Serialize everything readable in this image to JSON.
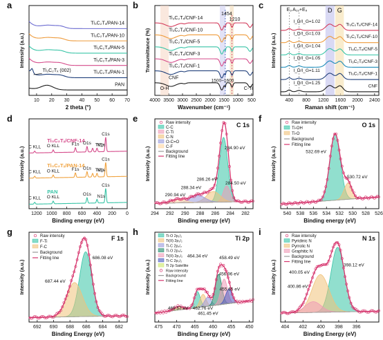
{
  "figure": {
    "panels": [
      {
        "id": "a",
        "title": "",
        "xlabel": "2 theta (°)",
        "ylabel": "Intensity (a.u.)"
      },
      {
        "id": "b",
        "title": "",
        "xlabel": "Wavenumber (cm⁻¹)",
        "ylabel": "Transmittance (%)"
      },
      {
        "id": "c",
        "title": "",
        "xlabel": "Raman shift (cm⁻¹)",
        "ylabel": "Intensity (a.u.)"
      },
      {
        "id": "d",
        "title": "",
        "xlabel": "Binding energy (eV)",
        "ylabel": "Intensity (a.u.)"
      },
      {
        "id": "e",
        "title": "C 1s",
        "xlabel": "Binding energy (eV)",
        "ylabel": "Intensity (a.u.)"
      },
      {
        "id": "f",
        "title": "O 1s",
        "xlabel": "Binding energy (eV)",
        "ylabel": "Intensity (a.u.)"
      },
      {
        "id": "g",
        "title": "F 1s",
        "xlabel": "Binding Energy (eV)",
        "ylabel": "Intensity (a.u.)"
      },
      {
        "id": "h",
        "title": "Ti 2p",
        "xlabel": "Binding Energy (eV)",
        "ylabel": "Intensity (a.u.)"
      },
      {
        "id": "i",
        "title": "N 1s",
        "xlabel": "Binding Energy (eV)",
        "ylabel": "Intensity (a.u.)"
      }
    ]
  },
  "chart_data": [
    {
      "panel": "a",
      "type": "line",
      "xlim": [
        5,
        70
      ],
      "xticks": [
        10,
        20,
        30,
        40,
        50,
        60,
        70
      ],
      "annotations": [
        {
          "text": "Ti₃C₂Tₓ (002)"
        }
      ],
      "series": [
        {
          "name": "Ti₃C₂Tₓ/PAN-14",
          "color": "#6a6ad0",
          "offset": 5
        },
        {
          "name": "Ti₃C₂Tₓ/PAN-10",
          "color": "#ee9a3a",
          "offset": 4
        },
        {
          "name": "Ti₃C₂Tₓ/PAN-5",
          "color": "#37c4a6",
          "offset": 3
        },
        {
          "name": "Ti₃C₂Tₓ/PAN-3",
          "color": "#d54a8a",
          "offset": 2
        },
        {
          "name": "Ti₃C₂Tₓ/PAN-1",
          "color": "#1f3f7a",
          "offset": 1
        },
        {
          "name": "PAN",
          "color": "#1a1a1a",
          "offset": 0
        }
      ]
    },
    {
      "panel": "b",
      "type": "line",
      "xlim": [
        4000,
        450
      ],
      "xaxis": "reversed",
      "xticks": [
        4000,
        3500,
        3000,
        2500,
        2000,
        1500,
        1000,
        500
      ],
      "annotations": [
        {
          "text": "1454"
        },
        {
          "text": "1210"
        },
        {
          "text": "1500~1600"
        },
        {
          "text": "O-H"
        },
        {
          "text": "C-Ti"
        }
      ],
      "series": [
        {
          "name": "Ti₃C₂Tₓ/CNF-14",
          "color": "#d33a5a",
          "offset": 5
        },
        {
          "name": "Ti₃C₂Tₓ/CNF-10",
          "color": "#ee9a3a",
          "offset": 4
        },
        {
          "name": "Ti₃C₂Tₓ/CNF-5",
          "color": "#37c4a6",
          "offset": 3
        },
        {
          "name": "Ti₃C₂Tₓ/CNF-3",
          "color": "#d54a8a",
          "offset": 2
        },
        {
          "name": "Ti₃C₂Tₓ/CNF-1",
          "color": "#1f3f7a",
          "offset": 1
        },
        {
          "name": "CNF",
          "color": "#1a1a1a",
          "offset": 0
        }
      ]
    },
    {
      "panel": "c",
      "type": "line",
      "xlim": [
        200,
        2500
      ],
      "xticks": [
        400,
        800,
        1200,
        1600,
        2000,
        2400
      ],
      "bands": [
        "E₉",
        "A₁₉+E₉",
        "D",
        "G"
      ],
      "series": [
        {
          "name": "Ti₃C₂Tₓ/CNF-14",
          "color": "#d33a5a",
          "ratio": "I_D/I_G=1.02"
        },
        {
          "name": "Ti₃C₂Tₓ/CNF-10",
          "color": "#ee9a3a",
          "ratio": "I_D/I_G=1.03"
        },
        {
          "name": "Ti₃C₂Tₓ/CNF-5",
          "color": "#37c4a6",
          "ratio": "I_D/I_G=1.04"
        },
        {
          "name": "Ti₃C₂Tₓ/CNF-3",
          "color": "#1a8ab8",
          "ratio": "I_D/I_G=1.05"
        },
        {
          "name": "Ti₃C₂Tₓ/CNF-1",
          "color": "#1f3f7a",
          "ratio": "I_D/I_G=1.11"
        },
        {
          "name": "CNF",
          "color": "#1a1a1a",
          "ratio": "I_D/I_G=1.25"
        }
      ]
    },
    {
      "panel": "d",
      "type": "line",
      "xlim": [
        1300,
        0
      ],
      "xaxis": "reversed",
      "xticks": [
        1200,
        1000,
        800,
        600,
        400,
        200,
        0
      ],
      "series": [
        {
          "name": "Ti₃C₂Tₓ/CNF-14",
          "color": "#d54a8a",
          "peaks": [
            {
              "label": "C KLL"
            },
            {
              "label": "O KLL"
            },
            {
              "label": "F1s"
            },
            {
              "label": "Ti2p"
            },
            {
              "label": "O1s"
            },
            {
              "label": "N1s"
            },
            {
              "label": "C1s"
            }
          ]
        },
        {
          "name": "Ti₃C₂Tₓ/PAN-14",
          "color": "#f0a23e",
          "peaks": [
            {
              "label": "C KLL"
            },
            {
              "label": "O KLL"
            },
            {
              "label": "F1s"
            },
            {
              "label": "Ti2p"
            },
            {
              "label": "O1s"
            },
            {
              "label": "N1s"
            },
            {
              "label": "C1s"
            }
          ]
        },
        {
          "name": "PAN",
          "color": "#37c4a6",
          "peaks": [
            {
              "label": "C KLL"
            },
            {
              "label": "O KLL"
            },
            {
              "label": "O1s"
            },
            {
              "label": "N1s"
            },
            {
              "label": "C1s"
            }
          ]
        }
      ]
    },
    {
      "panel": "e",
      "type": "line",
      "xlim": [
        294,
        281
      ],
      "xaxis": "reversed",
      "xticks": [
        294,
        292,
        290,
        288,
        286,
        284,
        282
      ],
      "legend": [
        "Raw intensity",
        "C-C",
        "C-Ti",
        "C-N",
        "O-C=O",
        "C-F",
        "Background",
        "Fitting line"
      ],
      "components": [
        {
          "name": "C-C",
          "center": 284.9,
          "label": "284.90 eV",
          "color": "#37c4a6"
        },
        {
          "name": "C-Ti",
          "center": 284.5,
          "label": "284.50 eV",
          "color": "#ef9ab6"
        },
        {
          "name": "C-N",
          "center": 286.26,
          "label": "286.26 eV",
          "color": "#f0c27a"
        },
        {
          "name": "O-C=O",
          "center": 288.34,
          "label": "288.34 eV",
          "color": "#9a9adc"
        },
        {
          "name": "C-F",
          "center": 290.94,
          "label": "290.94 eV",
          "color": "#ffd6a0"
        }
      ]
    },
    {
      "panel": "f",
      "type": "line",
      "xlim": [
        541,
        526
      ],
      "xaxis": "reversed",
      "xticks": [
        540,
        538,
        536,
        534,
        532,
        530,
        528,
        526
      ],
      "legend": [
        "Raw intensity",
        "Ti-OH",
        "Ti-O",
        "Background",
        "Fitting line"
      ],
      "components": [
        {
          "name": "Ti-OH",
          "center": 532.69,
          "label": "532.69 eV",
          "color": "#37c4a6"
        },
        {
          "name": "Ti-O",
          "center": 530.72,
          "label": "530.72 eV",
          "color": "#f0c27a"
        }
      ]
    },
    {
      "panel": "g",
      "type": "line",
      "xlim": [
        693,
        681
      ],
      "xaxis": "reversed",
      "xticks": [
        692,
        690,
        688,
        686,
        684,
        682
      ],
      "legend": [
        "Raw intensity",
        "F-Ti",
        "F-C",
        "Background",
        "Fitting line"
      ],
      "components": [
        {
          "name": "F-Ti",
          "center": 686.08,
          "label": "686.08 eV",
          "color": "#37c4a6"
        },
        {
          "name": "F-C",
          "center": 687.44,
          "label": "687.44 eV",
          "color": "#f0c27a"
        }
      ]
    },
    {
      "panel": "h",
      "type": "line",
      "xlim": [
        476,
        449
      ],
      "xaxis": "reversed",
      "xticks": [
        475,
        470,
        465,
        460,
        455,
        450
      ],
      "legend": [
        "Ti-O 2p₁/₂",
        "Ti(II) 2p₁/₂",
        "Ti-C 2p₁/₂",
        "Ti-O 2p₃/₂",
        "Ti(II) 2p₃/₂",
        "Ti-C 2p₃/₂",
        "Ti 2p Satellite",
        "Raw intensity",
        "Background",
        "Fitting line"
      ],
      "components": [
        {
          "name": "Ti-O 2p₁/₂",
          "center": 464.34,
          "label": "464.34 eV",
          "color": "#37c4a6"
        },
        {
          "name": "Ti(II) 2p₁/₂",
          "center": 462.76,
          "label": "462.76 eV",
          "color": "#f0c27a"
        },
        {
          "name": "Ti-C 2p₁/₂",
          "center": 461.45,
          "label": "461.45 eV",
          "color": "#9a9adc"
        },
        {
          "name": "Ti-O 2p₃/₂",
          "center": 458.49,
          "label": "458.49 eV",
          "color": "#1f8a6a"
        },
        {
          "name": "Ti(II) 2p₃/₂",
          "center": 456.96,
          "label": "456.96 eV",
          "color": "#ef9ab6"
        },
        {
          "name": "Ti-C 2p₃/₂",
          "center": 455.65,
          "label": "455.65 eV",
          "color": "#4a5cc0"
        },
        {
          "name": "Ti 2p Satellite",
          "center": 469.57,
          "label": "469.57 eV",
          "color": "#cde86a"
        }
      ]
    },
    {
      "panel": "i",
      "type": "line",
      "xlim": [
        404.5,
        393.5
      ],
      "xaxis": "reversed",
      "xticks": [
        404,
        402,
        400,
        398,
        396
      ],
      "legend": [
        "Raw intensity",
        "Pyridinic N",
        "Pyrrolic N",
        "Graphitic N",
        "Background",
        "Fitting line"
      ],
      "components": [
        {
          "name": "Pyridinic N",
          "center": 398.12,
          "label": "398.12 eV",
          "color": "#37c4a6"
        },
        {
          "name": "Pyrrolic N",
          "center": 400.05,
          "label": "400.05 eV",
          "color": "#f0c27a"
        },
        {
          "name": "Graphitic N",
          "center": 400.86,
          "label": "400.86 eV",
          "color": "#ef9ab6"
        }
      ]
    }
  ]
}
